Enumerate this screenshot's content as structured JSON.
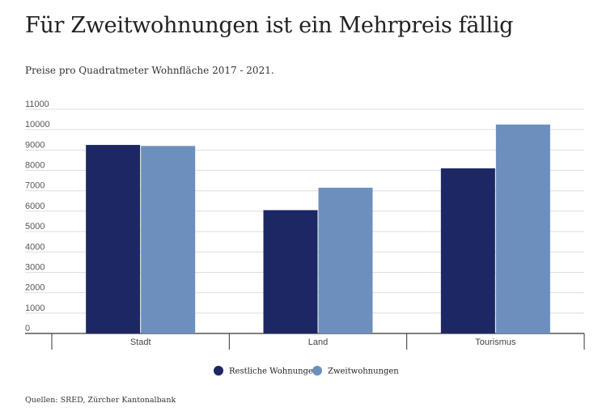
{
  "title": "Für Zweitwohnungen ist ein Mehrpreis fällig",
  "subtitle": "Preise pro Quadratmeter Wohnfläche 2017 - 2021.",
  "source": "Quellen: SRED, Zürcher Kantonalbank",
  "colors": {
    "series1": "#1c2763",
    "series2": "#6d8fbd",
    "grid": "#dddddd",
    "axis": "#333333"
  },
  "chart_data": {
    "type": "bar",
    "categories": [
      "Stadt",
      "Land",
      "Tourismus"
    ],
    "series": [
      {
        "name": "Restliche Wohnungen",
        "values": [
          9250,
          6050,
          8100
        ]
      },
      {
        "name": "Zweitwohnungen",
        "values": [
          9200,
          7150,
          10250
        ]
      }
    ],
    "ylim": [
      0,
      11000
    ],
    "yticks": [
      "0",
      "1000",
      "2000",
      "3000",
      "4000",
      "5000",
      "6000",
      "7000",
      "8000",
      "9000",
      "10000",
      "11000"
    ],
    "grid": true,
    "legend": "bottom-center"
  }
}
